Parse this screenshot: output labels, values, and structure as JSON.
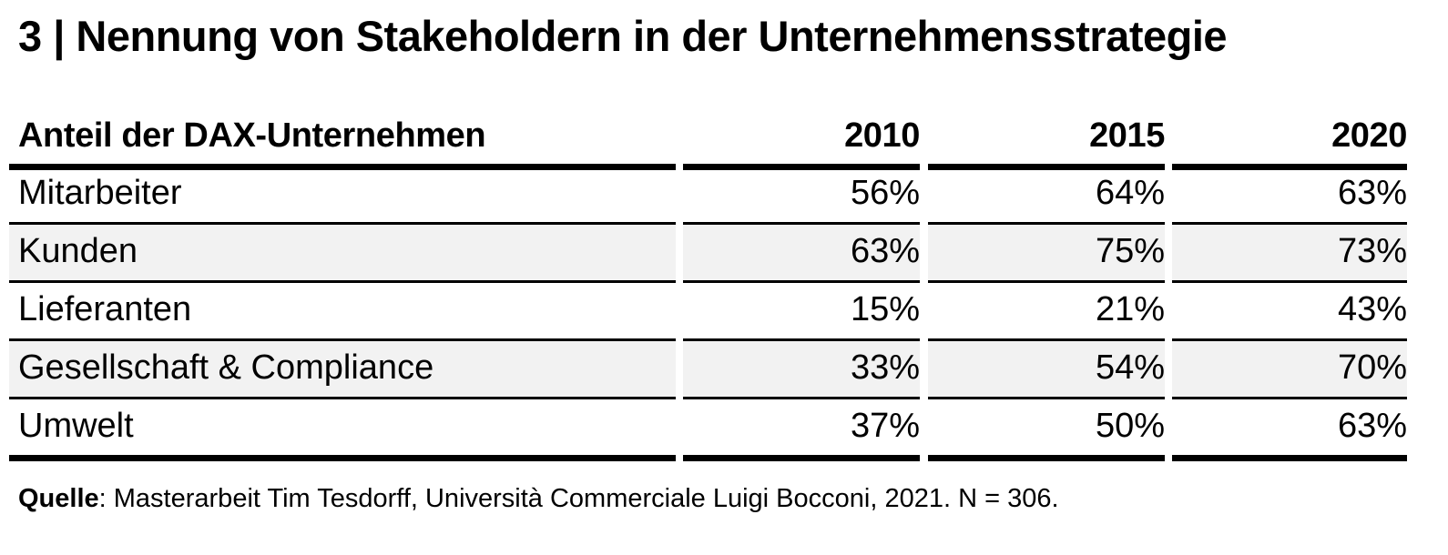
{
  "title": "3 | Nennung von Stakeholdern in der Unternehmensstrategie",
  "chart_data": {
    "type": "table",
    "row_header_label": "Anteil der DAX-Unternehmen",
    "columns": [
      "2010",
      "2015",
      "2020"
    ],
    "rows": [
      {
        "label": "Mitarbeiter",
        "values": [
          "56%",
          "64%",
          "63%"
        ]
      },
      {
        "label": "Kunden",
        "values": [
          "63%",
          "75%",
          "73%"
        ]
      },
      {
        "label": "Lieferanten",
        "values": [
          "15%",
          "21%",
          "43%"
        ]
      },
      {
        "label": "Gesellschaft & Compliance",
        "values": [
          "33%",
          "54%",
          "70%"
        ]
      },
      {
        "label": "Umwelt",
        "values": [
          "37%",
          "50%",
          "63%"
        ]
      }
    ]
  },
  "source": {
    "label": "Quelle",
    "text": ": Masterarbeit Tim Tesdorff, Università Commerciale Luigi Bocconi, 2021. N = 306."
  },
  "colors": {
    "stripe": "#f2f2f2",
    "rule": "#000000"
  }
}
